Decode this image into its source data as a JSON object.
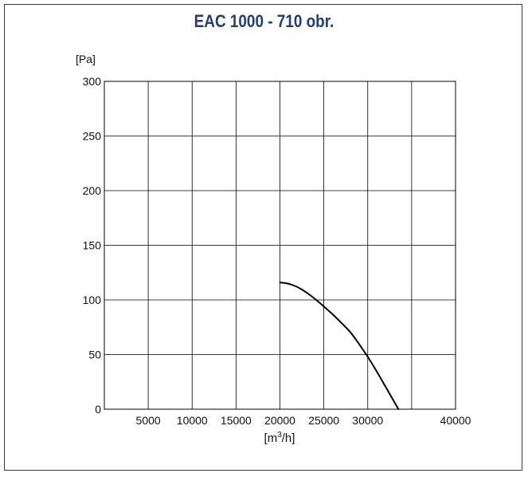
{
  "colors": {
    "frame": "#1f3f7a",
    "title": "#1f3f7a",
    "grid": "#000000",
    "curve": "#000000"
  },
  "chart_data": {
    "type": "line",
    "title": "EAC 1000 - 710 obr.",
    "ylabel": "[Pa]",
    "xlabel_parts": {
      "base": "[m",
      "sup": "3",
      "tail": "/h]"
    },
    "xlim": [
      0,
      40000
    ],
    "ylim": [
      0,
      300
    ],
    "x_ticks": [
      5000,
      10000,
      15000,
      20000,
      25000,
      30000,
      35000,
      40000
    ],
    "x_tick_labels": [
      "5000",
      "10000",
      "15000",
      "20000",
      "25000",
      "30000",
      "",
      "40000"
    ],
    "y_ticks": [
      0,
      50,
      100,
      150,
      200,
      250,
      300
    ],
    "y_tick_labels": [
      "0",
      "50",
      "100",
      "150",
      "200",
      "250",
      "300"
    ],
    "grid": true,
    "series": [
      {
        "x": [
          20000,
          21000,
          22000,
          23000,
          24000,
          25000,
          26000,
          27000,
          28000,
          29000,
          30000,
          31000,
          32000,
          33000,
          33500
        ],
        "y": [
          116,
          115,
          112,
          107,
          101,
          94,
          87,
          79,
          71,
          60,
          48,
          35,
          21,
          7,
          0
        ]
      }
    ]
  }
}
